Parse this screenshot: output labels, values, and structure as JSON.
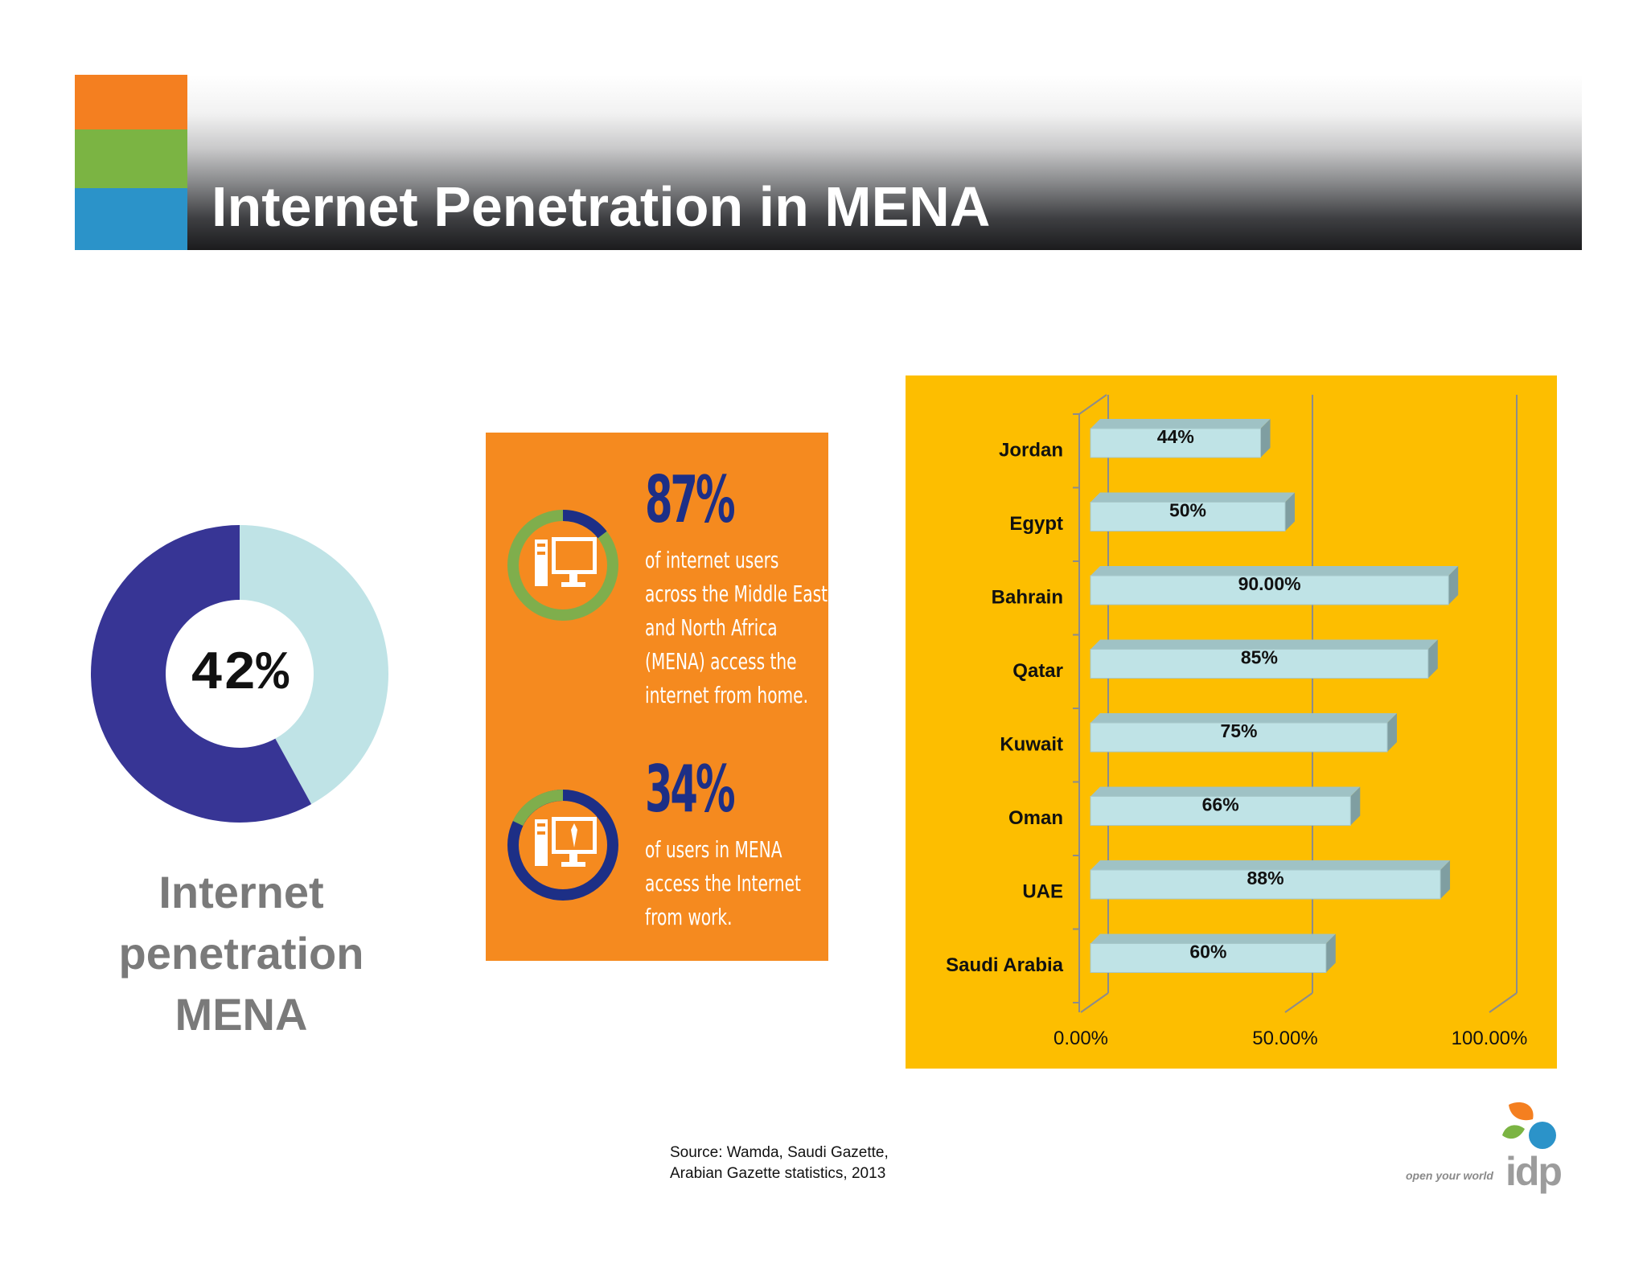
{
  "slide": {
    "title": "Internet Penetration in MENA",
    "accent_colors": [
      "#f47f20",
      "#7bb443",
      "#2b93c9"
    ]
  },
  "donut": {
    "value_label": "42%",
    "caption_lines": [
      "Internet",
      "penetration",
      "MENA"
    ]
  },
  "infographic": {
    "stats": [
      {
        "percent": "87%",
        "lines": [
          "of internet users",
          "across the Middle East",
          "and North Africa",
          "(MENA) access the",
          "internet from home."
        ],
        "icon": "desktop-computer-icon"
      },
      {
        "percent": "34%",
        "lines": [
          "of users in MENA",
          "access the Internet",
          "from work."
        ],
        "icon": "office-computer-icon"
      }
    ]
  },
  "chart_data": [
    {
      "type": "pie",
      "title": "",
      "slices": [
        {
          "label": "",
          "value": 42,
          "color": "#bfe3e6"
        },
        {
          "label": "",
          "value": 58,
          "color": "#373595"
        }
      ]
    },
    {
      "type": "bar",
      "orientation": "horizontal",
      "title": "",
      "categories": [
        "Jordan",
        "Egypt",
        "Bahrain",
        "Qatar",
        "Kuwait",
        "Oman",
        "UAE",
        "Saudi Arabia"
      ],
      "values": [
        44,
        50,
        90,
        85,
        75,
        66,
        88,
        60
      ],
      "data_labels": [
        "44%",
        "50%",
        "90.00%",
        "85%",
        "75%",
        "66%",
        "88%",
        "60%"
      ],
      "x_ticks": [
        "0.00%",
        "50.00%",
        "100.00%"
      ],
      "xlim": [
        0,
        100
      ],
      "grid": true,
      "bar_color": "#bfe3e6",
      "background": "#fdbe00"
    }
  ],
  "footer": {
    "source_lines": [
      "Source: Wamda, Saudi Gazette,",
      "Arabian Gazette statistics, 2013"
    ],
    "logo_tagline": "open your world",
    "logo_wordmark": "idp"
  }
}
